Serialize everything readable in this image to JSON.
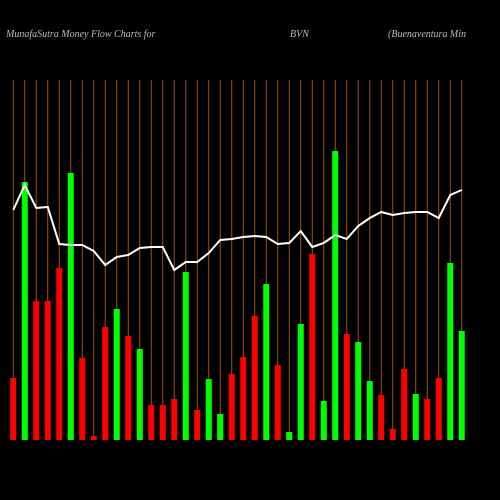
{
  "chart_data": {
    "type": "bar",
    "title": "MunafaSutra  Money Flow  Charts for",
    "symbol": "BVN",
    "subtitle": "(Buenaventura  Min",
    "categories": [
      null,
      null,
      null,
      null,
      null,
      null,
      null,
      null,
      null,
      null,
      null,
      null,
      null,
      null,
      null,
      null,
      null,
      null,
      null,
      null,
      null,
      null,
      null,
      null,
      null,
      null,
      null,
      null,
      null,
      null,
      null,
      null,
      null,
      null,
      null,
      null,
      null,
      null,
      null,
      null
    ],
    "values": [
      62,
      258,
      139,
      139,
      172,
      267,
      82,
      4,
      113,
      131,
      104,
      91,
      35,
      35,
      41,
      168,
      30,
      61,
      26,
      66,
      83,
      124,
      156,
      75,
      8,
      116,
      186,
      39,
      289,
      106,
      98,
      59,
      45,
      11,
      71,
      46,
      41,
      62,
      177,
      109
    ],
    "colors": [
      "#ff0000",
      "#00ff00",
      "#ff0000",
      "#ff0000",
      "#ff0000",
      "#00ff00",
      "#ff0000",
      "#ff0000",
      "#ff0000",
      "#00ff00",
      "#ff0000",
      "#00ff00",
      "#ff0000",
      "#ff0000",
      "#ff0000",
      "#00ff00",
      "#ff0000",
      "#00ff00",
      "#00ff00",
      "#ff0000",
      "#ff0000",
      "#ff0000",
      "#00ff00",
      "#ff0000",
      "#00ff00",
      "#00ff00",
      "#ff0000",
      "#00ff00",
      "#00ff00",
      "#ff0000",
      "#00ff00",
      "#00ff00",
      "#ff0000",
      "#ff0000",
      "#ff0000",
      "#00ff00",
      "#ff0000",
      "#ff0000",
      "#00ff00",
      "#00ff00"
    ],
    "line": {
      "color": "#ffffff",
      "values": [
        230,
        255,
        232,
        233,
        196,
        195,
        195,
        189,
        175,
        183,
        185,
        192,
        193,
        193,
        170,
        178,
        178,
        187,
        200,
        201,
        203,
        204,
        203,
        196,
        197,
        209,
        193,
        197,
        205,
        201,
        214,
        222,
        228,
        225,
        227,
        228,
        228,
        222,
        245,
        250
      ]
    },
    "ylim": [
      0,
      360
    ],
    "grid": true,
    "grid_color": "#a0520f"
  }
}
